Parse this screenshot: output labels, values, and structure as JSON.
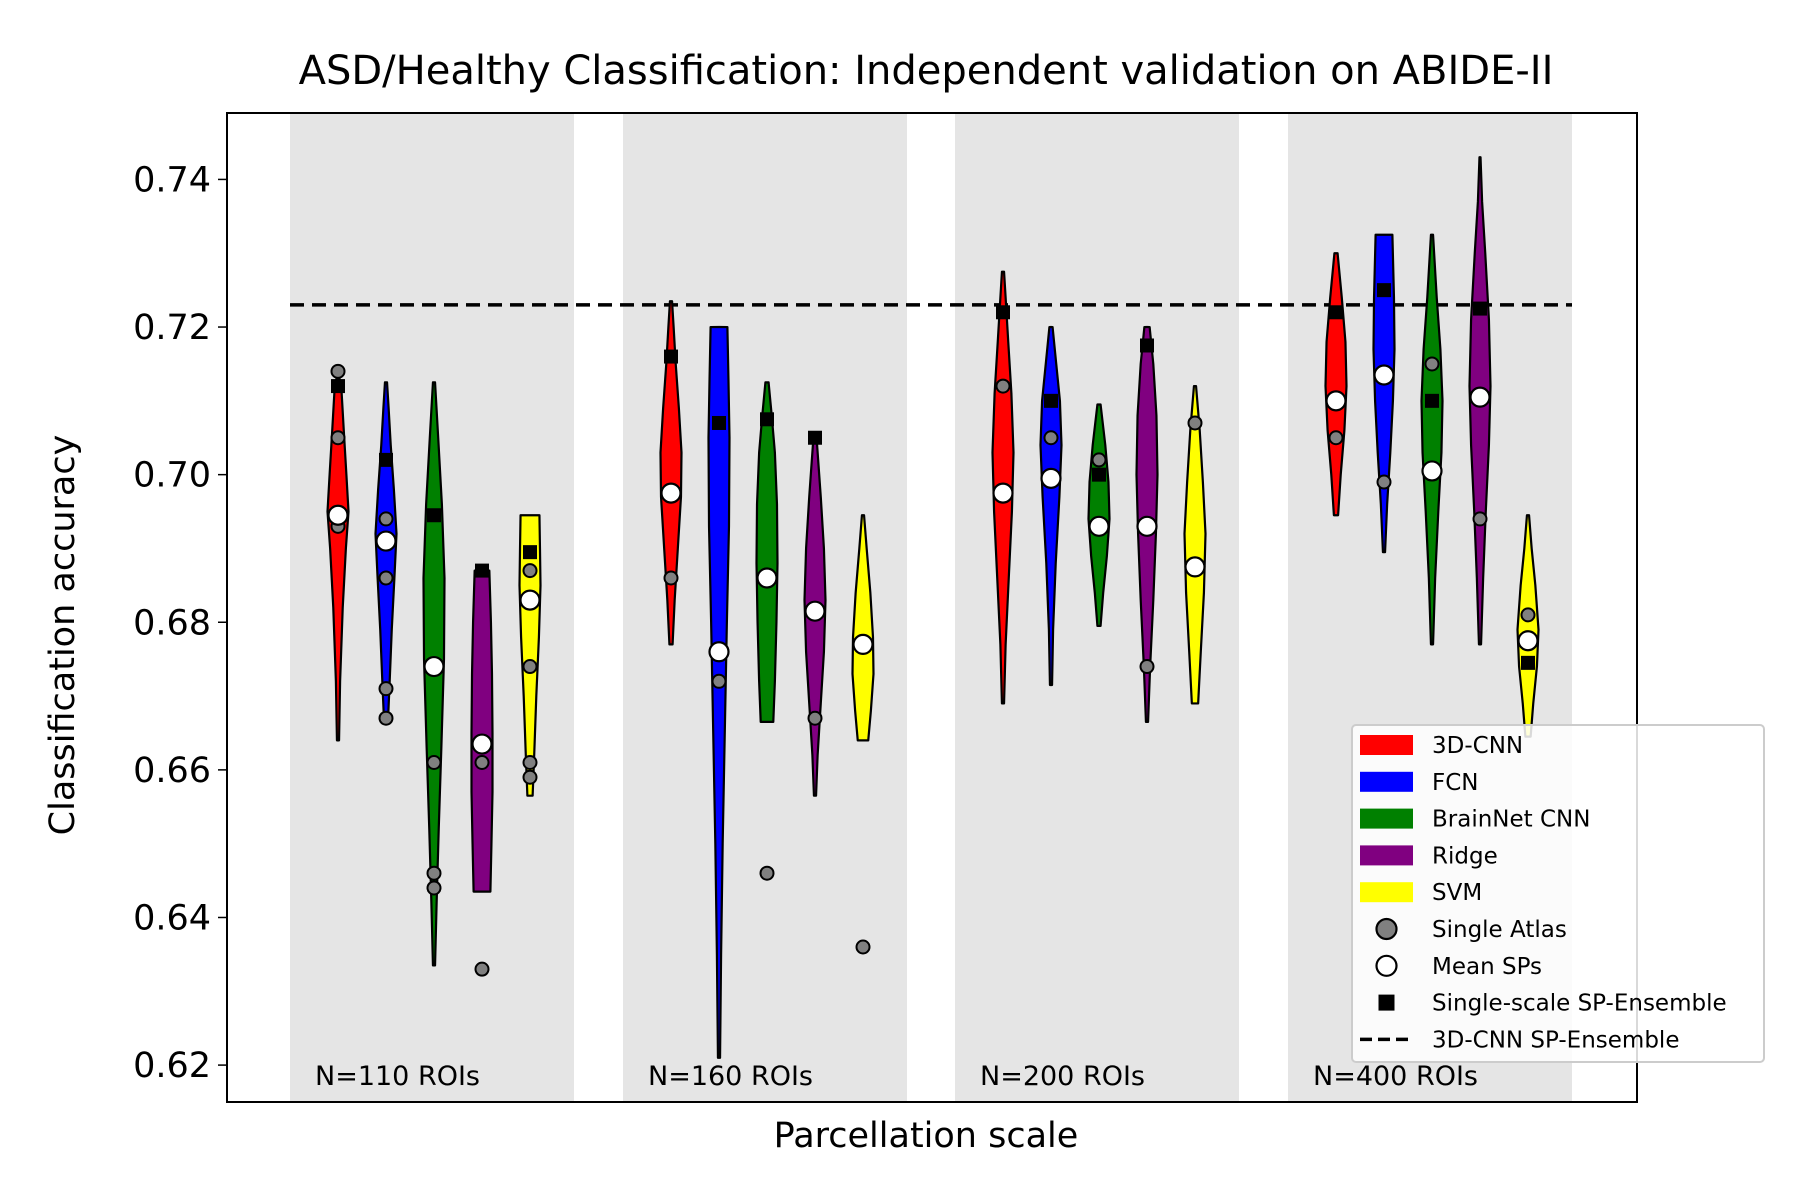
{
  "chart_data": {
    "type": "violin",
    "title": "ASD/Healthy Classification: Independent validation on ABIDE-II",
    "xlabel": "Parcellation scale",
    "ylabel": "Classification accuracy",
    "ylim": [
      0.615,
      0.749
    ],
    "yticks": [
      0.62,
      0.64,
      0.66,
      0.68,
      0.7,
      0.72,
      0.74
    ],
    "ytick_labels": [
      "0.62",
      "0.64",
      "0.66",
      "0.68",
      "0.70",
      "0.72",
      "0.74"
    ],
    "reference_line": {
      "name": "3D-CNN SP-Ensemble",
      "value": 0.723
    },
    "legend_position": "lower-right",
    "legend": [
      {
        "label": "3D-CNN",
        "kind": "patch",
        "color": "#ff0000"
      },
      {
        "label": "FCN",
        "kind": "patch",
        "color": "#0000ff"
      },
      {
        "label": "BrainNet CNN",
        "kind": "patch",
        "color": "#008000"
      },
      {
        "label": "Ridge",
        "kind": "patch",
        "color": "#800080"
      },
      {
        "label": "SVM",
        "kind": "patch",
        "color": "#ffff00"
      },
      {
        "label": "Single Atlas",
        "kind": "gray-circle"
      },
      {
        "label": "Mean SPs",
        "kind": "white-circle"
      },
      {
        "label": "Single-scale SP-Ensemble",
        "kind": "black-square"
      },
      {
        "label": "3D-CNN SP-Ensemble",
        "kind": "dashed-line"
      }
    ],
    "methods": [
      "3D-CNN",
      "FCN",
      "BrainNet CNN",
      "Ridge",
      "SVM"
    ],
    "colors": [
      "#ff0000",
      "#0000ff",
      "#008000",
      "#800080",
      "#ffff00"
    ],
    "groups": [
      {
        "label": "N=110 ROIs",
        "violins": [
          {
            "method": "3D-CNN",
            "min": 0.664,
            "max": 0.713,
            "mean_sp": 0.6945,
            "ensemble": 0.712,
            "single_atlas": [
              0.714,
              0.705,
              0.693
            ],
            "profile": [
              [
                0.664,
                0.1
              ],
              [
                0.672,
                0.2
              ],
              [
                0.682,
                0.45
              ],
              [
                0.69,
                0.75
              ],
              [
                0.695,
                1.0
              ],
              [
                0.7,
                0.8
              ],
              [
                0.706,
                0.55
              ],
              [
                0.711,
                0.35
              ],
              [
                0.713,
                0.15
              ]
            ]
          },
          {
            "method": "FCN",
            "min": 0.667,
            "max": 0.7125,
            "mean_sp": 0.691,
            "ensemble": 0.702,
            "single_atlas": [
              0.694,
              0.686,
              0.671,
              0.667
            ],
            "profile": [
              [
                0.667,
                0.2
              ],
              [
                0.672,
                0.35
              ],
              [
                0.679,
                0.55
              ],
              [
                0.686,
                0.8
              ],
              [
                0.692,
                1.0
              ],
              [
                0.698,
                0.75
              ],
              [
                0.704,
                0.45
              ],
              [
                0.709,
                0.25
              ],
              [
                0.7125,
                0.1
              ]
            ]
          },
          {
            "method": "BrainNet CNN",
            "min": 0.6335,
            "max": 0.7125,
            "mean_sp": 0.674,
            "ensemble": 0.6945,
            "single_atlas": [
              0.661,
              0.646,
              0.644
            ],
            "profile": [
              [
                0.6335,
                0.1
              ],
              [
                0.642,
                0.25
              ],
              [
                0.652,
                0.45
              ],
              [
                0.663,
                0.7
              ],
              [
                0.675,
                0.95
              ],
              [
                0.686,
                1.0
              ],
              [
                0.696,
                0.75
              ],
              [
                0.705,
                0.4
              ],
              [
                0.7125,
                0.1
              ]
            ]
          },
          {
            "method": "Ridge",
            "min": 0.6435,
            "max": 0.687,
            "mean_sp": 0.6635,
            "ensemble": 0.687,
            "single_atlas": [
              0.661,
              0.633
            ],
            "profile": [
              [
                0.6435,
                0.8
              ],
              [
                0.65,
                0.9
              ],
              [
                0.657,
                1.0
              ],
              [
                0.665,
                1.0
              ],
              [
                0.673,
                0.95
              ],
              [
                0.68,
                0.85
              ],
              [
                0.687,
                0.7
              ]
            ]
          },
          {
            "method": "SVM",
            "min": 0.6565,
            "max": 0.6945,
            "mean_sp": 0.683,
            "ensemble": 0.6895,
            "single_atlas": [
              0.687,
              0.674,
              0.661,
              0.659
            ],
            "profile": [
              [
                0.6565,
                0.25
              ],
              [
                0.662,
                0.4
              ],
              [
                0.67,
                0.6
              ],
              [
                0.678,
                0.85
              ],
              [
                0.685,
                1.0
              ],
              [
                0.69,
                0.95
              ],
              [
                0.6945,
                0.9
              ]
            ]
          }
        ]
      },
      {
        "label": "N=160 ROIs",
        "violins": [
          {
            "method": "3D-CNN",
            "min": 0.677,
            "max": 0.7235,
            "mean_sp": 0.6975,
            "ensemble": 0.716,
            "single_atlas": [
              0.686
            ],
            "profile": [
              [
                0.677,
                0.15
              ],
              [
                0.683,
                0.35
              ],
              [
                0.69,
                0.65
              ],
              [
                0.697,
                0.95
              ],
              [
                0.703,
                1.0
              ],
              [
                0.709,
                0.75
              ],
              [
                0.715,
                0.45
              ],
              [
                0.72,
                0.25
              ],
              [
                0.7235,
                0.1
              ]
            ]
          },
          {
            "method": "FCN",
            "min": 0.621,
            "max": 0.72,
            "mean_sp": 0.676,
            "ensemble": 0.707,
            "single_atlas": [
              0.672
            ],
            "profile": [
              [
                0.621,
                0.1
              ],
              [
                0.635,
                0.2
              ],
              [
                0.65,
                0.35
              ],
              [
                0.665,
                0.55
              ],
              [
                0.68,
                0.75
              ],
              [
                0.693,
                0.95
              ],
              [
                0.705,
                1.0
              ],
              [
                0.713,
                0.9
              ],
              [
                0.72,
                0.8
              ]
            ]
          },
          {
            "method": "BrainNet CNN",
            "min": 0.6665,
            "max": 0.7125,
            "mean_sp": 0.686,
            "ensemble": 0.7075,
            "single_atlas": [
              0.646
            ],
            "profile": [
              [
                0.6665,
                0.6
              ],
              [
                0.672,
                0.75
              ],
              [
                0.68,
                0.9
              ],
              [
                0.688,
                1.0
              ],
              [
                0.696,
                0.95
              ],
              [
                0.703,
                0.75
              ],
              [
                0.708,
                0.45
              ],
              [
                0.7125,
                0.15
              ]
            ]
          },
          {
            "method": "Ridge",
            "min": 0.6565,
            "max": 0.705,
            "mean_sp": 0.6815,
            "ensemble": 0.705,
            "single_atlas": [
              0.667
            ],
            "profile": [
              [
                0.6565,
                0.1
              ],
              [
                0.662,
                0.25
              ],
              [
                0.669,
                0.55
              ],
              [
                0.676,
                0.85
              ],
              [
                0.683,
                1.0
              ],
              [
                0.69,
                0.85
              ],
              [
                0.697,
                0.55
              ],
              [
                0.702,
                0.3
              ],
              [
                0.705,
                0.15
              ]
            ]
          },
          {
            "method": "SVM",
            "min": 0.664,
            "max": 0.6945,
            "mean_sp": 0.677,
            "ensemble": null,
            "single_atlas": [
              0.636
            ],
            "profile": [
              [
                0.664,
                0.5
              ],
              [
                0.668,
                0.75
              ],
              [
                0.673,
                1.0
              ],
              [
                0.678,
                0.95
              ],
              [
                0.684,
                0.7
              ],
              [
                0.69,
                0.35
              ],
              [
                0.6945,
                0.1
              ]
            ]
          }
        ]
      },
      {
        "label": "N=200 ROIs",
        "violins": [
          {
            "method": "3D-CNN",
            "min": 0.669,
            "max": 0.7275,
            "mean_sp": 0.6975,
            "ensemble": 0.722,
            "single_atlas": [
              0.712
            ],
            "profile": [
              [
                0.669,
                0.1
              ],
              [
                0.677,
                0.25
              ],
              [
                0.686,
                0.55
              ],
              [
                0.695,
                0.85
              ],
              [
                0.703,
                1.0
              ],
              [
                0.711,
                0.8
              ],
              [
                0.718,
                0.5
              ],
              [
                0.724,
                0.25
              ],
              [
                0.7275,
                0.1
              ]
            ]
          },
          {
            "method": "FCN",
            "min": 0.6715,
            "max": 0.72,
            "mean_sp": 0.6995,
            "ensemble": 0.71,
            "single_atlas": [
              0.705
            ],
            "profile": [
              [
                0.6715,
                0.1
              ],
              [
                0.679,
                0.2
              ],
              [
                0.688,
                0.45
              ],
              [
                0.697,
                0.8
              ],
              [
                0.704,
                1.0
              ],
              [
                0.71,
                0.85
              ],
              [
                0.715,
                0.5
              ],
              [
                0.72,
                0.15
              ]
            ]
          },
          {
            "method": "BrainNet CNN",
            "min": 0.6795,
            "max": 0.7095,
            "mean_sp": 0.693,
            "ensemble": 0.7,
            "single_atlas": [
              0.702
            ],
            "profile": [
              [
                0.6795,
                0.15
              ],
              [
                0.684,
                0.4
              ],
              [
                0.689,
                0.75
              ],
              [
                0.694,
                1.0
              ],
              [
                0.699,
                0.9
              ],
              [
                0.704,
                0.6
              ],
              [
                0.7095,
                0.15
              ]
            ]
          },
          {
            "method": "Ridge",
            "min": 0.6665,
            "max": 0.72,
            "mean_sp": 0.693,
            "ensemble": 0.7175,
            "single_atlas": [
              0.674
            ],
            "profile": [
              [
                0.6665,
                0.1
              ],
              [
                0.674,
                0.3
              ],
              [
                0.683,
                0.6
              ],
              [
                0.692,
                0.85
              ],
              [
                0.7,
                1.0
              ],
              [
                0.708,
                0.9
              ],
              [
                0.715,
                0.6
              ],
              [
                0.72,
                0.25
              ]
            ]
          },
          {
            "method": "SVM",
            "min": 0.669,
            "max": 0.712,
            "mean_sp": 0.6875,
            "ensemble": null,
            "single_atlas": [
              0.707
            ],
            "profile": [
              [
                0.669,
                0.3
              ],
              [
                0.676,
                0.55
              ],
              [
                0.684,
                0.85
              ],
              [
                0.692,
                1.0
              ],
              [
                0.699,
                0.75
              ],
              [
                0.706,
                0.45
              ],
              [
                0.712,
                0.1
              ]
            ]
          }
        ]
      },
      {
        "label": "N=400 ROIs",
        "violins": [
          {
            "method": "3D-CNN",
            "min": 0.6945,
            "max": 0.73,
            "mean_sp": 0.71,
            "ensemble": 0.722,
            "single_atlas": [
              0.705
            ],
            "profile": [
              [
                0.6945,
                0.2
              ],
              [
                0.7,
                0.45
              ],
              [
                0.706,
                0.8
              ],
              [
                0.712,
                1.0
              ],
              [
                0.718,
                0.9
              ],
              [
                0.724,
                0.55
              ],
              [
                0.73,
                0.15
              ]
            ]
          },
          {
            "method": "FCN",
            "min": 0.6895,
            "max": 0.7325,
            "mean_sp": 0.7135,
            "ensemble": 0.725,
            "single_atlas": [
              0.699
            ],
            "profile": [
              [
                0.6895,
                0.1
              ],
              [
                0.696,
                0.3
              ],
              [
                0.703,
                0.6
              ],
              [
                0.71,
                0.85
              ],
              [
                0.717,
                1.0
              ],
              [
                0.724,
                0.95
              ],
              [
                0.7325,
                0.8
              ]
            ]
          },
          {
            "method": "BrainNet CNN",
            "min": 0.677,
            "max": 0.7325,
            "mean_sp": 0.7005,
            "ensemble": 0.71,
            "single_atlas": [
              0.715
            ],
            "profile": [
              [
                0.677,
                0.1
              ],
              [
                0.686,
                0.3
              ],
              [
                0.695,
                0.6
              ],
              [
                0.703,
                0.9
              ],
              [
                0.71,
                1.0
              ],
              [
                0.717,
                0.8
              ],
              [
                0.724,
                0.45
              ],
              [
                0.7325,
                0.1
              ]
            ]
          },
          {
            "method": "Ridge",
            "min": 0.677,
            "max": 0.743,
            "mean_sp": 0.7105,
            "ensemble": 0.7225,
            "single_atlas": [
              0.694
            ],
            "profile": [
              [
                0.677,
                0.1
              ],
              [
                0.686,
                0.3
              ],
              [
                0.695,
                0.55
              ],
              [
                0.704,
                0.85
              ],
              [
                0.712,
                1.0
              ],
              [
                0.721,
                0.85
              ],
              [
                0.73,
                0.5
              ],
              [
                0.737,
                0.2
              ],
              [
                0.743,
                0.05
              ]
            ]
          },
          {
            "method": "SVM",
            "min": 0.6645,
            "max": 0.6945,
            "mean_sp": 0.6775,
            "ensemble": 0.6745,
            "single_atlas": [
              0.681
            ],
            "profile": [
              [
                0.6645,
                0.25
              ],
              [
                0.669,
                0.5
              ],
              [
                0.674,
                0.85
              ],
              [
                0.679,
                1.0
              ],
              [
                0.685,
                0.7
              ],
              [
                0.69,
                0.35
              ],
              [
                0.6945,
                0.1
              ]
            ]
          }
        ]
      }
    ]
  }
}
